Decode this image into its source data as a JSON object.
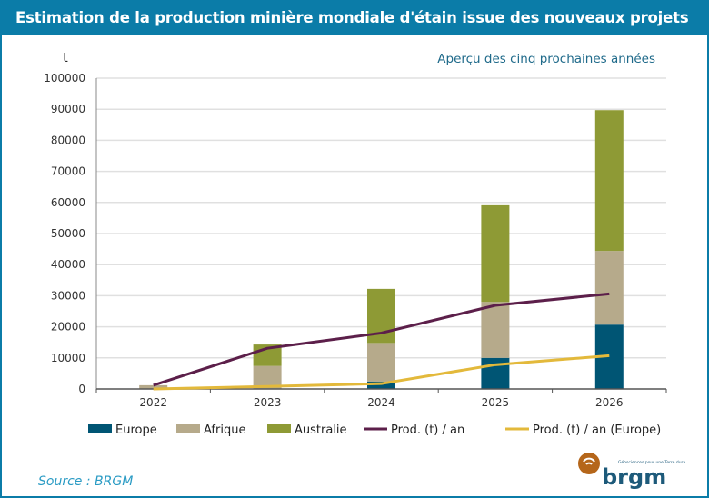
{
  "header": {
    "title": "Estimation de la production minière mondiale d'étain issue des nouveaux projets"
  },
  "subtitle": "Aperçu des cinq prochaines années",
  "source": "Source : BRGM",
  "logo": {
    "text": "brgm",
    "tagline": "Géosciences pour une Terre durable"
  },
  "chart_data": {
    "type": "bar",
    "stacked": true,
    "ylabel": "t",
    "ylim": [
      0,
      100000
    ],
    "yticks": [
      "0",
      "10000",
      "20000",
      "30000",
      "40000",
      "50000",
      "60000",
      "70000",
      "80000",
      "90000",
      "100000"
    ],
    "grid": true,
    "legend": "bottom",
    "categories": [
      "2022",
      "2023",
      "2024",
      "2025",
      "2026"
    ],
    "series": [
      {
        "name": "Europe",
        "kind": "bar",
        "color": "#005574",
        "values": [
          0,
          200,
          2400,
          10000,
          20700
        ]
      },
      {
        "name": "Afrique",
        "kind": "bar",
        "color": "#b6aa8b",
        "values": [
          1200,
          7200,
          12400,
          18000,
          23700
        ]
      },
      {
        "name": "Australie",
        "kind": "bar",
        "color": "#8e9a35",
        "values": [
          0,
          6900,
          17400,
          31100,
          45300
        ]
      },
      {
        "name": "Prod. (t) / an",
        "kind": "line",
        "color": "#5c1f4a",
        "values": [
          1200,
          13100,
          18000,
          26900,
          30600
        ]
      },
      {
        "name": "Prod. (t) / an (Europe)",
        "kind": "line",
        "color": "#e3b93b",
        "values": [
          0,
          800,
          1700,
          7800,
          10700
        ]
      }
    ]
  }
}
